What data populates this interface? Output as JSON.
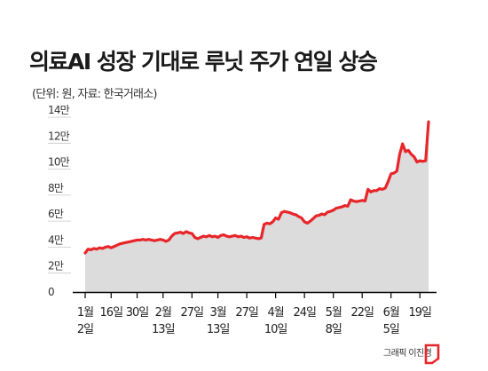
{
  "header": {
    "title": "의료AI 성장 기대로 루닛 주가 연일 상승",
    "subtitle": "(단위: 원, 자료: 한국거래소)"
  },
  "footer": {
    "credit": "그래픽 이진경"
  },
  "colors": {
    "line": "#e8262a",
    "area": "#dcdcdc",
    "axis": "#000000",
    "grid": "#c8c8c8"
  },
  "chart_data": {
    "type": "area",
    "title": "의료AI 성장 기대로 루닛 주가 연일 상승",
    "unit_note": "(단위: 원, 자료: 한국거래소)",
    "y_ticks": [
      "0",
      "2만",
      "4만",
      "6만",
      "8만",
      "10만",
      "12만",
      "14만"
    ],
    "y_tick_values": [
      0,
      20000,
      40000,
      60000,
      80000,
      100000,
      120000,
      140000
    ],
    "ylim": [
      0,
      140000
    ],
    "x_ticks": [
      {
        "line1": "1월",
        "line2": "2일",
        "index": 0
      },
      {
        "line1": "16일",
        "line2": "",
        "index": 9
      },
      {
        "line1": "30일",
        "line2": "",
        "index": 18
      },
      {
        "line1": "2월",
        "line2": "13일",
        "index": 27
      },
      {
        "line1": "27일",
        "line2": "",
        "index": 37
      },
      {
        "line1": "3월",
        "line2": "13일",
        "index": 46
      },
      {
        "line1": "27일",
        "line2": "",
        "index": 56
      },
      {
        "line1": "4월",
        "line2": "10일",
        "index": 66
      },
      {
        "line1": "24일",
        "line2": "",
        "index": 76
      },
      {
        "line1": "5월",
        "line2": "8일",
        "index": 86
      },
      {
        "line1": "22일",
        "line2": "",
        "index": 96
      },
      {
        "line1": "6월",
        "line2": "5일",
        "index": 106
      },
      {
        "line1": "19일",
        "line2": "",
        "index": 116
      }
    ],
    "grid": false,
    "series": [
      {
        "name": "",
        "values": [
          30000,
          33000,
          32500,
          33500,
          33000,
          34000,
          33500,
          34500,
          35000,
          34000,
          35000,
          36000,
          37000,
          37500,
          38000,
          38500,
          39000,
          39500,
          40000,
          40000,
          40500,
          40000,
          40500,
          40000,
          39500,
          40000,
          40500,
          40000,
          39000,
          40000,
          43000,
          45000,
          45500,
          46000,
          45000,
          46500,
          45500,
          45000,
          42000,
          41000,
          42000,
          43000,
          42500,
          43500,
          42500,
          43000,
          42000,
          43500,
          44000,
          43000,
          42500,
          43000,
          43500,
          42500,
          43000,
          42000,
          42500,
          41500,
          42000,
          41500,
          41000,
          41500,
          52000,
          53000,
          52500,
          54000,
          57000,
          56000,
          61000,
          62000,
          61500,
          61000,
          60000,
          59500,
          58000,
          57000,
          54000,
          53000,
          54500,
          56500,
          58500,
          59000,
          60000,
          59500,
          61500,
          62000,
          63000,
          64500,
          65000,
          65500,
          66500,
          66000,
          71000,
          70000,
          69500,
          70000,
          70500,
          70000,
          79000,
          77000,
          78000,
          78000,
          79500,
          79000,
          80000,
          85000,
          91000,
          91500,
          93000,
          106000,
          114000,
          108000,
          109000,
          106000,
          104000,
          100000,
          101000,
          100500,
          101000,
          131000
        ]
      }
    ]
  }
}
